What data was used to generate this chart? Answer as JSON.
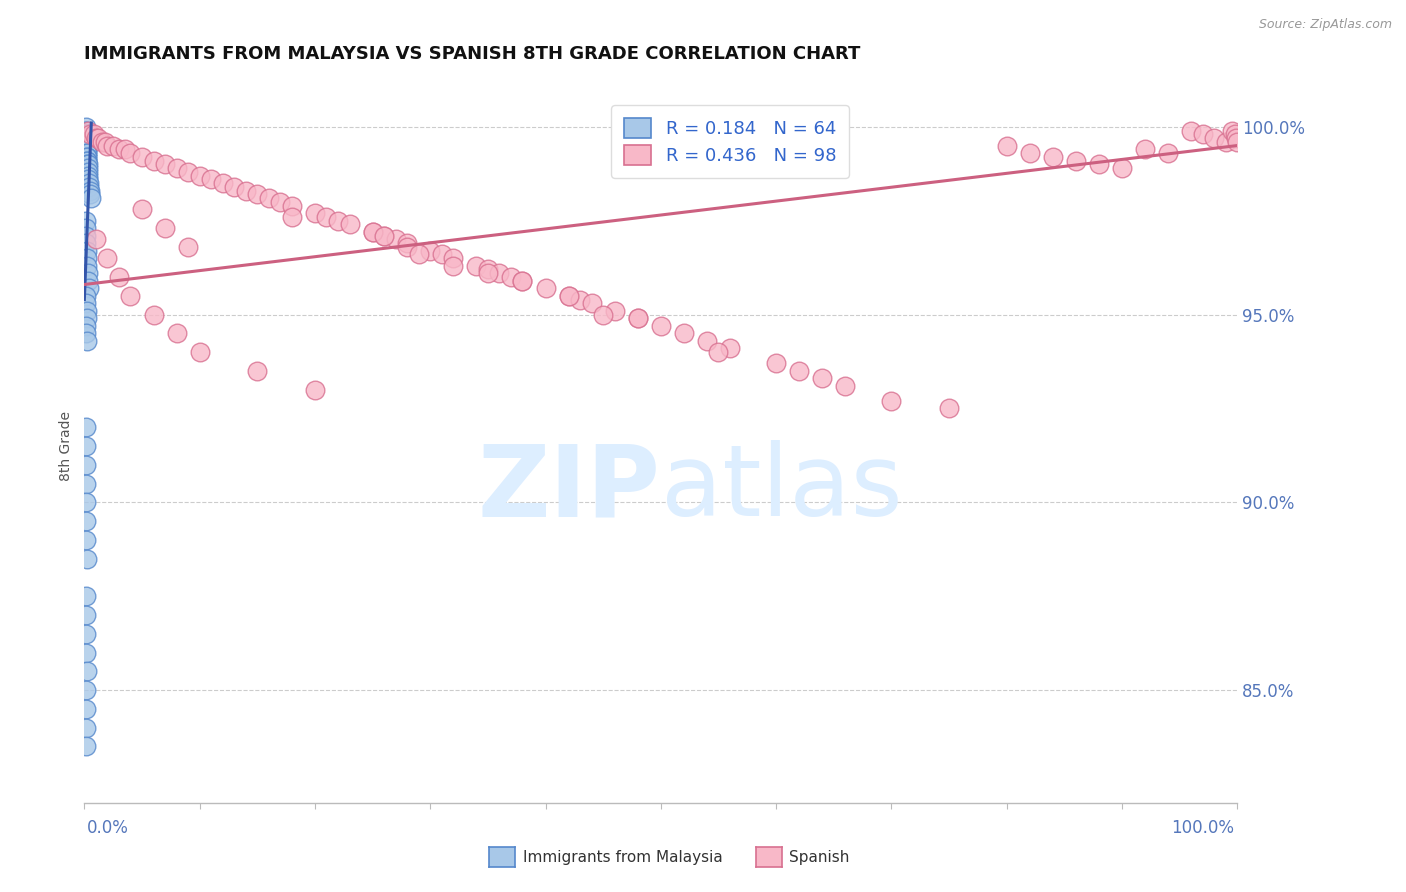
{
  "title": "IMMIGRANTS FROM MALAYSIA VS SPANISH 8TH GRADE CORRELATION CHART",
  "source_text": "Source: ZipAtlas.com",
  "ylabel": "8th Grade",
  "y_min": 0.82,
  "y_max": 1.01,
  "x_min": 0.0,
  "x_max": 1.0,
  "y_tick_values": [
    0.85,
    0.9,
    0.95,
    1.0
  ],
  "y_tick_labels": [
    "85.0%",
    "90.0%",
    "95.0%",
    "100.0%"
  ],
  "legend_R_blue": "R = 0.184",
  "legend_N_blue": "N = 64",
  "legend_R_pink": "R = 0.436",
  "legend_N_pink": "N = 98",
  "blue_fill": "#a8c8e8",
  "blue_edge": "#5588cc",
  "pink_fill": "#f8b8c8",
  "pink_edge": "#d87090",
  "blue_line_color": "#3355aa",
  "pink_line_color": "#cc6080",
  "axis_label_color": "#5577bb",
  "grid_color": "#cccccc",
  "title_color": "#111111",
  "source_color": "#999999",
  "watermark_color": "#ddeeff",
  "legend_text_color": "#3366cc",
  "bottom_legend_color": "#333333",
  "blue_x": [
    0.001,
    0.001,
    0.001,
    0.001,
    0.001,
    0.001,
    0.001,
    0.001,
    0.001,
    0.001,
    0.002,
    0.002,
    0.002,
    0.002,
    0.002,
    0.002,
    0.002,
    0.002,
    0.002,
    0.002,
    0.003,
    0.003,
    0.003,
    0.003,
    0.003,
    0.004,
    0.004,
    0.005,
    0.005,
    0.006,
    0.001,
    0.001,
    0.001,
    0.001,
    0.002,
    0.002,
    0.002,
    0.003,
    0.003,
    0.004,
    0.001,
    0.001,
    0.002,
    0.002,
    0.001,
    0.001,
    0.002,
    0.001,
    0.001,
    0.001,
    0.001,
    0.001,
    0.001,
    0.001,
    0.002,
    0.001,
    0.001,
    0.001,
    0.001,
    0.002,
    0.001,
    0.001,
    0.001,
    0.001
  ],
  "blue_y": [
    1.0,
    0.999,
    0.999,
    0.998,
    0.998,
    0.997,
    0.997,
    0.996,
    0.996,
    0.995,
    0.995,
    0.994,
    0.994,
    0.993,
    0.993,
    0.992,
    0.992,
    0.991,
    0.991,
    0.99,
    0.99,
    0.989,
    0.988,
    0.987,
    0.986,
    0.985,
    0.984,
    0.983,
    0.982,
    0.981,
    0.975,
    0.973,
    0.971,
    0.969,
    0.967,
    0.965,
    0.963,
    0.961,
    0.959,
    0.957,
    0.955,
    0.953,
    0.951,
    0.949,
    0.947,
    0.945,
    0.943,
    0.92,
    0.915,
    0.91,
    0.905,
    0.9,
    0.895,
    0.89,
    0.885,
    0.875,
    0.87,
    0.865,
    0.86,
    0.855,
    0.85,
    0.845,
    0.84,
    0.835
  ],
  "pink_x": [
    0.003,
    0.005,
    0.008,
    0.01,
    0.012,
    0.015,
    0.018,
    0.02,
    0.025,
    0.03,
    0.035,
    0.04,
    0.05,
    0.06,
    0.07,
    0.08,
    0.09,
    0.1,
    0.11,
    0.12,
    0.13,
    0.14,
    0.15,
    0.16,
    0.17,
    0.18,
    0.2,
    0.21,
    0.22,
    0.23,
    0.25,
    0.26,
    0.27,
    0.28,
    0.3,
    0.31,
    0.32,
    0.34,
    0.35,
    0.36,
    0.37,
    0.38,
    0.4,
    0.42,
    0.43,
    0.44,
    0.46,
    0.48,
    0.5,
    0.52,
    0.54,
    0.56,
    0.6,
    0.62,
    0.64,
    0.66,
    0.7,
    0.75,
    0.8,
    0.82,
    0.84,
    0.86,
    0.88,
    0.9,
    0.92,
    0.94,
    0.96,
    0.97,
    0.98,
    0.99,
    0.995,
    0.998,
    0.999,
    1.0,
    0.01,
    0.02,
    0.03,
    0.04,
    0.06,
    0.08,
    0.1,
    0.15,
    0.2,
    0.28,
    0.32,
    0.05,
    0.07,
    0.09,
    0.25,
    0.35,
    0.45,
    0.55,
    0.26,
    0.18,
    0.38,
    0.42,
    0.48,
    0.29
  ],
  "pink_y": [
    0.999,
    0.998,
    0.998,
    0.997,
    0.997,
    0.996,
    0.996,
    0.995,
    0.995,
    0.994,
    0.994,
    0.993,
    0.992,
    0.991,
    0.99,
    0.989,
    0.988,
    0.987,
    0.986,
    0.985,
    0.984,
    0.983,
    0.982,
    0.981,
    0.98,
    0.979,
    0.977,
    0.976,
    0.975,
    0.974,
    0.972,
    0.971,
    0.97,
    0.969,
    0.967,
    0.966,
    0.965,
    0.963,
    0.962,
    0.961,
    0.96,
    0.959,
    0.957,
    0.955,
    0.954,
    0.953,
    0.951,
    0.949,
    0.947,
    0.945,
    0.943,
    0.941,
    0.937,
    0.935,
    0.933,
    0.931,
    0.927,
    0.925,
    0.995,
    0.993,
    0.992,
    0.991,
    0.99,
    0.989,
    0.994,
    0.993,
    0.999,
    0.998,
    0.997,
    0.996,
    0.999,
    0.998,
    0.997,
    0.996,
    0.97,
    0.965,
    0.96,
    0.955,
    0.95,
    0.945,
    0.94,
    0.935,
    0.93,
    0.968,
    0.963,
    0.978,
    0.973,
    0.968,
    0.972,
    0.961,
    0.95,
    0.94,
    0.971,
    0.976,
    0.959,
    0.955,
    0.949,
    0.966
  ],
  "blue_line_x": [
    0.0,
    0.006
  ],
  "blue_line_y": [
    0.954,
    1.001
  ],
  "pink_line_x": [
    0.0,
    1.0
  ],
  "pink_line_y": [
    0.958,
    0.995
  ]
}
